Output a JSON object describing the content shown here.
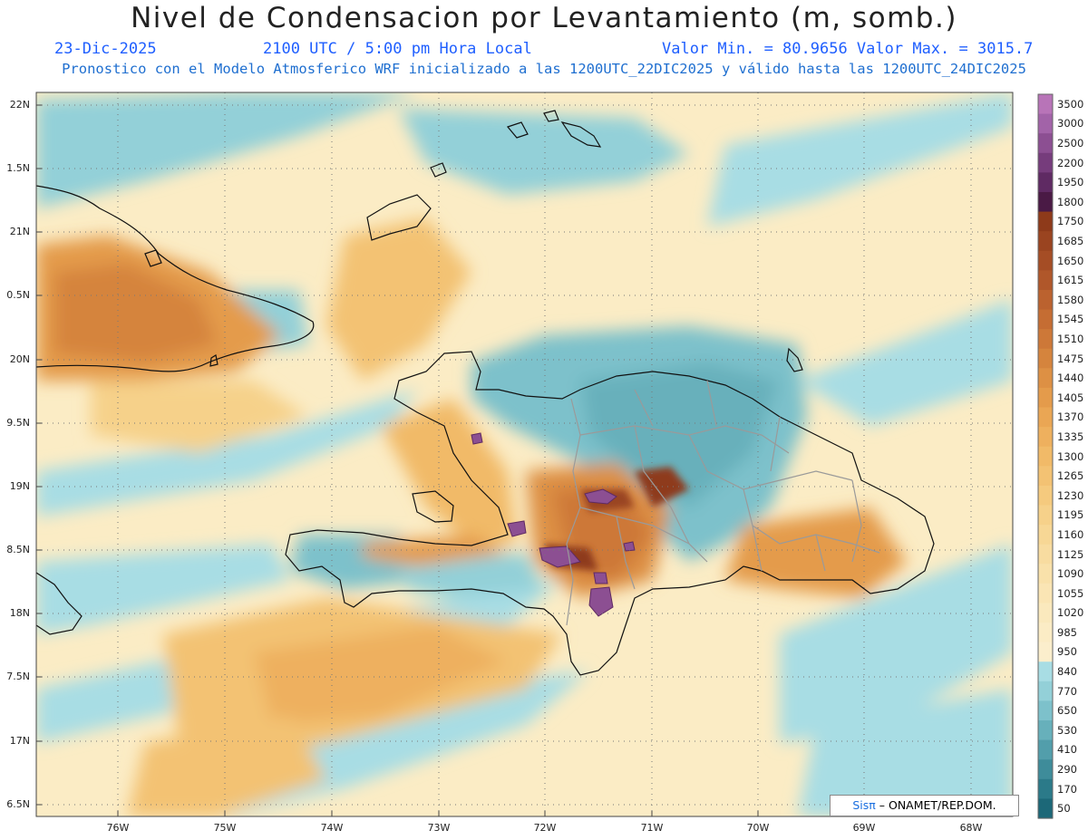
{
  "header": {
    "title": "Nivel de Condensacion por Levantamiento (m, somb.)",
    "date": "23-Dic-2025",
    "time": "2100 UTC / 5:00 pm Hora Local",
    "min_max": "Valor Min. = 80.9656  Valor Max. = 3015.7",
    "forecast_note": "Pronostico con el Modelo Atmosferico WRF inicializado a las 1200UTC_22DIC2025 y válido hasta las  1200UTC_24DIC2025"
  },
  "axes": {
    "lat_labels": [
      "22N",
      "1.5N",
      "21N",
      "0.5N",
      "20N",
      "9.5N",
      "19N",
      "8.5N",
      "18N",
      "7.5N",
      "17N",
      "6.5N"
    ],
    "lon_labels": [
      "76W",
      "75W",
      "74W",
      "73W",
      "72W",
      "71W",
      "70W",
      "69W",
      "68W"
    ]
  },
  "colorbar": {
    "levels": [
      "3500",
      "3000",
      "2500",
      "2200",
      "1950",
      "1800",
      "1750",
      "1685",
      "1650",
      "1615",
      "1580",
      "1545",
      "1510",
      "1475",
      "1440",
      "1405",
      "1370",
      "1335",
      "1300",
      "1265",
      "1230",
      "1195",
      "1160",
      "1125",
      "1090",
      "1055",
      "1020",
      "985",
      "950",
      "840",
      "770",
      "650",
      "530",
      "410",
      "290",
      "170",
      "50"
    ],
    "colors": [
      "#b874b8",
      "#a263a8",
      "#8c4f92",
      "#763c7c",
      "#5f2a63",
      "#4a1a45",
      "#8e3a1a",
      "#9a4420",
      "#a54d25",
      "#b0572a",
      "#bb622f",
      "#c56d33",
      "#cd7838",
      "#d5843d",
      "#dd9044",
      "#e49b4b",
      "#ea a654",
      "#eeb05e",
      "#f1ba68",
      "#f3c273",
      "#f5ca7e",
      "#f6d18a",
      "#f7d795",
      "#f8dca0",
      "#f9e1aa",
      "#fae5b4",
      "#fae9bd",
      "#fbecc5",
      "#fbeecc",
      "#a8dde4",
      "#93d0d8",
      "#7dc1cb",
      "#67b0bb",
      "#529eab",
      "#3e8c9a",
      "#2b7a89",
      "#1c6878"
    ]
  },
  "credit": {
    "brand": "Sisπ",
    "text": " – ONAMET/REP.DOM."
  }
}
